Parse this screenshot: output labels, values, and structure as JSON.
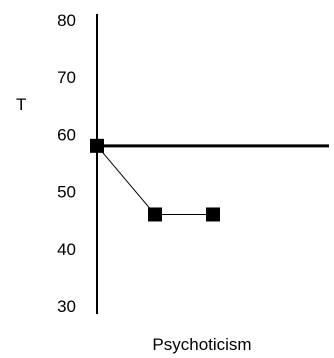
{
  "chart_data": {
    "type": "line",
    "ylabel": "T",
    "xlabel": "Psychoticism",
    "ylim": [
      30,
      80
    ],
    "yticks": [
      "30",
      "40",
      "50",
      "60",
      "70",
      "80"
    ],
    "reference_line": {
      "y": 58
    },
    "series": [
      {
        "points": [
          {
            "x": 0,
            "y": 58
          },
          {
            "x": 1,
            "y": 46
          },
          {
            "x": 2,
            "y": 46
          }
        ]
      }
    ],
    "colors": {
      "line": "#000000",
      "marker": "#000000"
    }
  }
}
